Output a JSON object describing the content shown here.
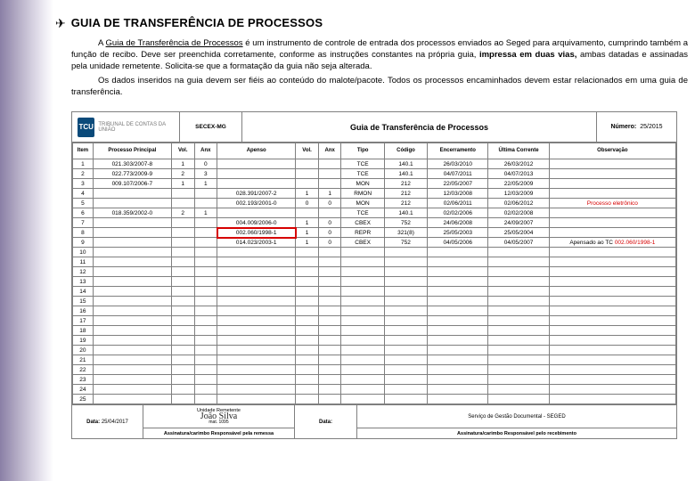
{
  "heading": {
    "icon": "✈",
    "text": "GUIA DE TRANSFERÊNCIA DE PROCESSOS"
  },
  "paragraphs": {
    "p1_a": "A ",
    "p1_link": "Guia de Transferência de Processos",
    "p1_b": " é um instrumento de controle de entrada dos processos enviados ao Seged para arquivamento, cumprindo também a função de recibo. Deve ser preenchida corretamente, conforme as instruções constantes na própria guia, ",
    "p1_bold": "impressa em duas vias,",
    "p1_c": " ambas datadas e assinadas pela unidade remetente. Solicita-se que a formatação da guia não seja alterada.",
    "p2": "Os dados inseridos na guia devem ser fiéis ao conteúdo do malote/pacote. Todos os processos encaminhados devem estar relacionados em uma guia de transferência."
  },
  "figure": {
    "logo_badge": "TCU",
    "logo_text": "TRIBUNAL DE CONTAS DA UNIÃO",
    "secex": "SECEX-MG",
    "title": "Guia de Transferência de Processos",
    "number_label": "Número:",
    "number_value": "25/2015",
    "columns": [
      "Item",
      "Processo Principal",
      "Vol.",
      "Anx",
      "Apenso",
      "Vol.",
      "Anx",
      "Tipo",
      "Código",
      "Encerramento",
      "Última Corrente",
      "Observação"
    ],
    "rows": [
      {
        "n": "1",
        "proc": "021.303/2007-8",
        "vol": "1",
        "anx": "0",
        "apen": "",
        "v2": "",
        "a2": "",
        "tipo": "TCE",
        "cod": "140.1",
        "enc": "26/03/2010",
        "ult": "26/03/2012",
        "obs": ""
      },
      {
        "n": "2",
        "proc": "022.773/2009-9",
        "vol": "2",
        "anx": "3",
        "apen": "",
        "v2": "",
        "a2": "",
        "tipo": "TCE",
        "cod": "140.1",
        "enc": "04/07/2011",
        "ult": "04/07/2013",
        "obs": ""
      },
      {
        "n": "3",
        "proc": "009.107/2006-7",
        "vol": "1",
        "anx": "1",
        "apen": "",
        "v2": "",
        "a2": "",
        "tipo": "MON",
        "cod": "212",
        "enc": "22/05/2007",
        "ult": "22/05/2009",
        "obs": ""
      },
      {
        "n": "4",
        "proc": "",
        "vol": "",
        "anx": "",
        "apen": "028.391/2007-2",
        "v2": "1",
        "a2": "1",
        "tipo": "RMON",
        "cod": "212",
        "enc": "12/03/2008",
        "ult": "12/03/2009",
        "obs": ""
      },
      {
        "n": "5",
        "proc": "",
        "vol": "",
        "anx": "",
        "apen": "002.193/2001-0",
        "v2": "0",
        "a2": "0",
        "tipo": "MON",
        "cod": "212",
        "enc": "02/06/2011",
        "ult": "02/06/2012",
        "obs": "Processo eletrônico",
        "obs_red": true
      },
      {
        "n": "6",
        "proc": "018.359/2002-0",
        "vol": "2",
        "anx": "1",
        "apen": "",
        "v2": "",
        "a2": "",
        "tipo": "TCE",
        "cod": "140.1",
        "enc": "02/02/2006",
        "ult": "02/02/2008",
        "obs": ""
      },
      {
        "n": "7",
        "proc": "",
        "vol": "",
        "anx": "",
        "apen": "004.009/2006-0",
        "v2": "1",
        "a2": "0",
        "tipo": "CBEX",
        "cod": "752",
        "enc": "24/06/2008",
        "ult": "24/09/2007",
        "obs": ""
      },
      {
        "n": "8",
        "proc": "",
        "vol": "",
        "anx": "",
        "apen": "002.060/1998-1",
        "v2": "1",
        "a2": "0",
        "tipo": "REPR",
        "cod": "321(8)",
        "enc": "25/05/2003",
        "ult": "25/05/2004",
        "obs": "",
        "hl": true
      },
      {
        "n": "9",
        "proc": "",
        "vol": "",
        "anx": "",
        "apen": "014.023/2003-1",
        "v2": "1",
        "a2": "0",
        "tipo": "CBEX",
        "cod": "752",
        "enc": "04/05/2006",
        "ult": "04/05/2007",
        "obs_parts": [
          "Apensado ao TC",
          "  ",
          "002.060/1998-1"
        ],
        "obs_mixed": true
      },
      {
        "n": "10"
      },
      {
        "n": "11"
      },
      {
        "n": "12"
      },
      {
        "n": "13"
      },
      {
        "n": "14"
      },
      {
        "n": "15"
      },
      {
        "n": "16"
      },
      {
        "n": "17"
      },
      {
        "n": "18"
      },
      {
        "n": "19"
      },
      {
        "n": "20"
      },
      {
        "n": "21"
      },
      {
        "n": "22"
      },
      {
        "n": "23"
      },
      {
        "n": "24"
      },
      {
        "n": "25"
      }
    ],
    "footer": {
      "data_label": "Data:",
      "data_value": "25/04/2017",
      "unidade_label": "Unidade Remetente",
      "sig_name": "João Silva",
      "sig_mat": "mat. 1095",
      "resp_remessa": "Assinatura/carimbo Responsável pela remessa",
      "data2_label": "Data:",
      "servico_label": "Serviço de Gestão Documental - SEGED",
      "resp_receb": "Assinatura/carimbo Responsável pelo recebimento"
    }
  }
}
